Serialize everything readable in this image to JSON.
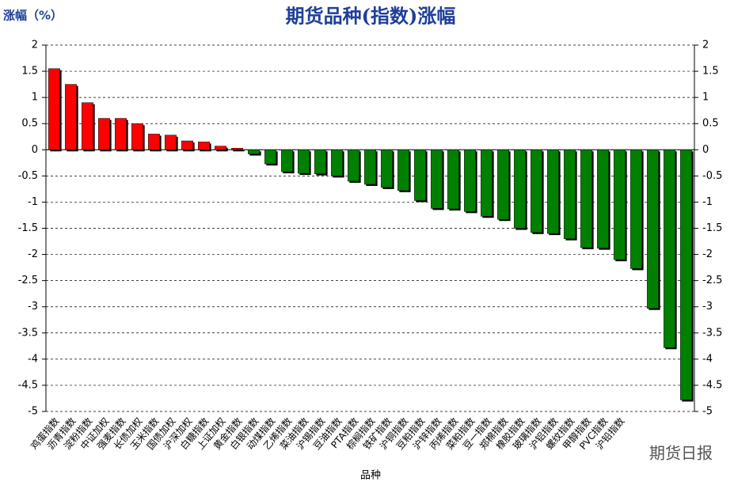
{
  "chart_data": {
    "type": "bar",
    "title": "期货品种(指数)涨幅",
    "y_label": "涨幅（%）",
    "x_label": "品种",
    "watermark": "期货日报",
    "categories": [
      "鸡蛋指数",
      "沥青指数",
      "淀粉指数",
      "中证加权",
      "强麦指数",
      "长债加权",
      "玉米指数",
      "国债加权",
      "沪深加权",
      "白糖指数",
      "上证加权",
      "黄金指数",
      "白银指数",
      "动煤指数",
      "乙烯指数",
      "菜油指数",
      "沪锡指数",
      "豆油指数",
      "PTA指数",
      "棕榈指数",
      "铁矿指数",
      "沪铜指数",
      "豆粕指数",
      "沪锌指数",
      "丙烯指数",
      "菜粕指数",
      "豆一指数",
      "郑棉指数",
      "橡胶指数",
      "玻璃指数",
      "沪铝指数",
      "螺纹指数",
      "甲醇指数",
      "PVC指数",
      "沪铅指数",
      null,
      null,
      null,
      null
    ],
    "values": [
      1.55,
      1.25,
      0.9,
      0.6,
      0.6,
      0.5,
      0.3,
      0.28,
      0.17,
      0.15,
      0.07,
      0.03,
      -0.08,
      -0.27,
      -0.42,
      -0.45,
      -0.46,
      -0.5,
      -0.6,
      -0.66,
      -0.72,
      -0.78,
      -0.97,
      -1.12,
      -1.13,
      -1.18,
      -1.27,
      -1.33,
      -1.5,
      -1.58,
      -1.6,
      -1.7,
      -1.87,
      -1.88,
      -2.1,
      -2.27,
      -3.03,
      -3.78,
      -4.78
    ],
    "positive_color": "#ff0000",
    "negative_color": "#008000",
    "ylim": [
      -5,
      2
    ],
    "yticks": [
      -5,
      -4.5,
      -4,
      -3.5,
      -3,
      -2.5,
      -2,
      -1.5,
      -1,
      -0.5,
      0,
      0.5,
      1,
      1.5,
      2
    ],
    "y2lim": [
      -5,
      2
    ],
    "y2ticks": [
      -5,
      -4.5,
      -4,
      -3.5,
      -3,
      -2.5,
      -2,
      -1.5,
      -1,
      -0.5,
      0,
      0.5,
      1,
      1.5,
      2
    ],
    "grid": true
  }
}
